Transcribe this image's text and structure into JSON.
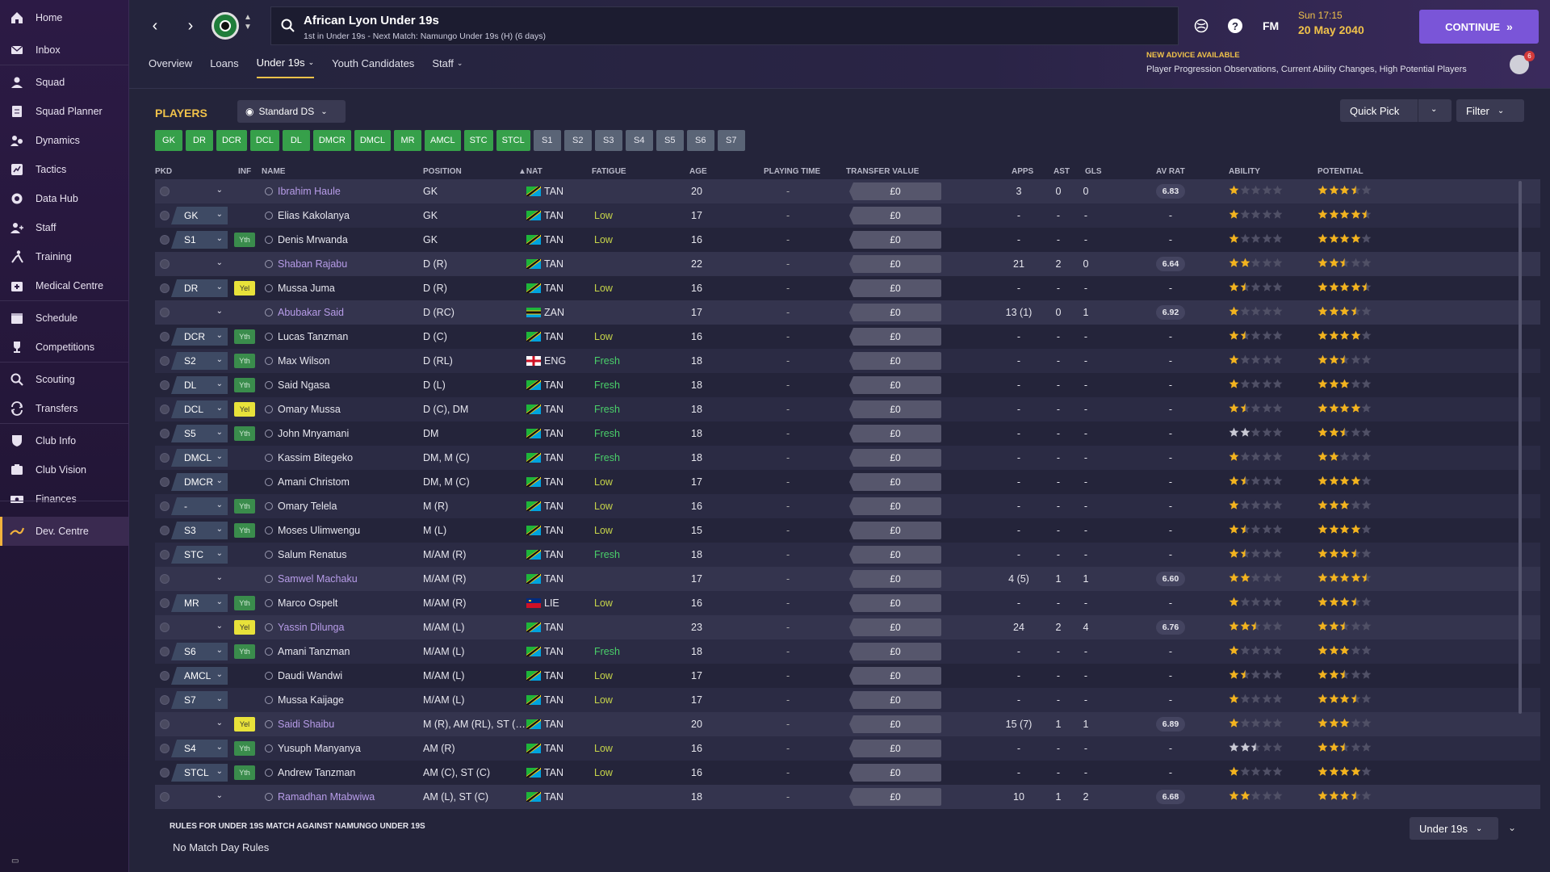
{
  "sidebar": {
    "items": [
      {
        "label": "Home",
        "icon": "home-icon"
      },
      {
        "label": "Inbox",
        "icon": "inbox-icon"
      },
      {
        "label": "Squad",
        "icon": "squad-icon"
      },
      {
        "label": "Squad Planner",
        "icon": "squad-planner-icon"
      },
      {
        "label": "Dynamics",
        "icon": "dynamics-icon"
      },
      {
        "label": "Tactics",
        "icon": "tactics-icon"
      },
      {
        "label": "Data Hub",
        "icon": "data-hub-icon"
      },
      {
        "label": "Staff",
        "icon": "staff-icon"
      },
      {
        "label": "Training",
        "icon": "training-icon"
      },
      {
        "label": "Medical Centre",
        "icon": "medical-icon"
      },
      {
        "label": "Schedule",
        "icon": "schedule-icon"
      },
      {
        "label": "Competitions",
        "icon": "trophy-icon"
      },
      {
        "label": "Scouting",
        "icon": "scouting-icon"
      },
      {
        "label": "Transfers",
        "icon": "transfers-icon"
      },
      {
        "label": "Club Info",
        "icon": "club-info-icon"
      },
      {
        "label": "Club Vision",
        "icon": "club-vision-icon"
      },
      {
        "label": "Finances",
        "icon": "finances-icon"
      },
      {
        "label": "Dev. Centre",
        "icon": "dev-centre-icon"
      }
    ]
  },
  "header": {
    "title": "African Lyon Under 19s",
    "subtitle": "1st in Under 19s - Next Match: Namungo Under 19s (H) (6 days)",
    "fm_label": "FM",
    "time": "Sun 17:15",
    "date": "20 May 2040",
    "continue_label": "CONTINUE",
    "tabs": [
      "Overview",
      "Loans",
      "Under 19s",
      "Youth Candidates",
      "Staff"
    ],
    "advice_title": "NEW ADVICE AVAILABLE",
    "advice_text": "Player Progression Observations, Current Ability Changes, High Potential Players",
    "advice_count": "6"
  },
  "toolbar": {
    "players_label": "PLAYERS",
    "view_label": "Standard DS",
    "quick_pick_label": "Quick Pick",
    "filter_label": "Filter"
  },
  "position_buttons": {
    "green": [
      "GK",
      "DR",
      "DCR",
      "DCL",
      "DL",
      "DMCR",
      "DMCL",
      "MR",
      "AMCL",
      "STC",
      "STCL"
    ],
    "grey": [
      "S1",
      "S2",
      "S3",
      "S4",
      "S5",
      "S6",
      "S7"
    ]
  },
  "columns": {
    "pkd": "PKD",
    "inf": "INF",
    "name": "NAME",
    "position": "POSITION",
    "nat": "NAT",
    "fatigue": "FATIGUE",
    "age": "AGE",
    "playing_time": "PLAYING TIME",
    "transfer_value": "TRANSFER VALUE",
    "apps": "APPS",
    "ast": "AST",
    "gls": "GLS",
    "av_rat": "AV RAT",
    "ability": "ABILITY",
    "potential": "POTENTIAL"
  },
  "players": [
    {
      "pkd": "",
      "inf": "",
      "name": "Ibrahim Haule",
      "link": true,
      "position": "GK",
      "nat": "TAN",
      "fatigue": "",
      "age": "20",
      "pt": "-",
      "tv": "£0",
      "apps": "3",
      "ast": "0",
      "gls": "0",
      "avrat": "6.83",
      "ability": 1,
      "potential": 3.5,
      "shade": true
    },
    {
      "pkd": "GK",
      "inf": "",
      "name": "Elias Kakolanya",
      "link": false,
      "position": "GK",
      "nat": "TAN",
      "fatigue": "Low",
      "age": "17",
      "pt": "-",
      "tv": "£0",
      "apps": "-",
      "ast": "-",
      "gls": "-",
      "avrat": "-",
      "ability": 1,
      "potential": 4.5,
      "shade": false
    },
    {
      "pkd": "S1",
      "inf": "Yth",
      "name": "Denis Mrwanda",
      "link": false,
      "position": "GK",
      "nat": "TAN",
      "fatigue": "Low",
      "age": "16",
      "pt": "-",
      "tv": "£0",
      "apps": "-",
      "ast": "-",
      "gls": "-",
      "avrat": "-",
      "ability": 1,
      "potential": 4,
      "shade": false
    },
    {
      "pkd": "",
      "inf": "",
      "name": "Shaban Rajabu",
      "link": true,
      "position": "D (R)",
      "nat": "TAN",
      "fatigue": "",
      "age": "22",
      "pt": "-",
      "tv": "£0",
      "apps": "21",
      "ast": "2",
      "gls": "0",
      "avrat": "6.64",
      "ability": 2,
      "potential": 2.5,
      "shade": true
    },
    {
      "pkd": "DR",
      "inf": "Yel",
      "name": "Mussa Juma",
      "link": false,
      "position": "D (R)",
      "nat": "TAN",
      "fatigue": "Low",
      "age": "16",
      "pt": "-",
      "tv": "£0",
      "apps": "-",
      "ast": "-",
      "gls": "-",
      "avrat": "-",
      "ability": 1.5,
      "potential": 4.5,
      "shade": false
    },
    {
      "pkd": "",
      "inf": "",
      "name": "Abubakar Said",
      "link": true,
      "position": "D (RC)",
      "nat": "ZAN",
      "fatigue": "",
      "age": "17",
      "pt": "-",
      "tv": "£0",
      "apps": "13 (1)",
      "ast": "0",
      "gls": "1",
      "avrat": "6.92",
      "ability": 1,
      "potential": 3.5,
      "shade": true
    },
    {
      "pkd": "DCR",
      "inf": "Yth",
      "name": "Lucas Tanzman",
      "link": false,
      "position": "D (C)",
      "nat": "TAN",
      "fatigue": "Low",
      "age": "16",
      "pt": "-",
      "tv": "£0",
      "apps": "-",
      "ast": "-",
      "gls": "-",
      "avrat": "-",
      "ability": 1.5,
      "potential": 4,
      "shade": false
    },
    {
      "pkd": "S2",
      "inf": "Yth",
      "name": "Max Wilson",
      "link": false,
      "position": "D (RL)",
      "nat": "ENG",
      "fatigue": "Fresh",
      "age": "18",
      "pt": "-",
      "tv": "£0",
      "apps": "-",
      "ast": "-",
      "gls": "-",
      "avrat": "-",
      "ability": 1,
      "potential": 2.5,
      "shade": false
    },
    {
      "pkd": "DL",
      "inf": "Yth",
      "name": "Said Ngasa",
      "link": false,
      "position": "D (L)",
      "nat": "TAN",
      "fatigue": "Fresh",
      "age": "18",
      "pt": "-",
      "tv": "£0",
      "apps": "-",
      "ast": "-",
      "gls": "-",
      "avrat": "-",
      "ability": 1,
      "potential": 3,
      "shade": false
    },
    {
      "pkd": "DCL",
      "inf": "Yel",
      "name": "Omary Mussa",
      "link": false,
      "position": "D (C), DM",
      "nat": "TAN",
      "fatigue": "Fresh",
      "age": "18",
      "pt": "-",
      "tv": "£0",
      "apps": "-",
      "ast": "-",
      "gls": "-",
      "avrat": "-",
      "ability": 1.5,
      "potential": 4,
      "shade": false
    },
    {
      "pkd": "S5",
      "inf": "Yth",
      "name": "John Mnyamani",
      "link": false,
      "position": "DM",
      "nat": "TAN",
      "fatigue": "Fresh",
      "age": "18",
      "pt": "-",
      "tv": "£0",
      "apps": "-",
      "ast": "-",
      "gls": "-",
      "avrat": "-",
      "ability": 2,
      "potential": 2.5,
      "shade": false,
      "greyAbility": true
    },
    {
      "pkd": "DMCL",
      "inf": "",
      "name": "Kassim Bitegeko",
      "link": false,
      "position": "DM, M (C)",
      "nat": "TAN",
      "fatigue": "Fresh",
      "age": "18",
      "pt": "-",
      "tv": "£0",
      "apps": "-",
      "ast": "-",
      "gls": "-",
      "avrat": "-",
      "ability": 1,
      "potential": 2,
      "shade": false
    },
    {
      "pkd": "DMCR",
      "inf": "",
      "name": "Amani Christom",
      "link": false,
      "position": "DM, M (C)",
      "nat": "TAN",
      "fatigue": "Low",
      "age": "17",
      "pt": "-",
      "tv": "£0",
      "apps": "-",
      "ast": "-",
      "gls": "-",
      "avrat": "-",
      "ability": 1.5,
      "potential": 4,
      "shade": false
    },
    {
      "pkd": "-",
      "inf": "Yth",
      "name": "Omary Telela",
      "link": false,
      "position": "M (R)",
      "nat": "TAN",
      "fatigue": "Low",
      "age": "16",
      "pt": "-",
      "tv": "£0",
      "apps": "-",
      "ast": "-",
      "gls": "-",
      "avrat": "-",
      "ability": 1,
      "potential": 3,
      "shade": false
    },
    {
      "pkd": "S3",
      "inf": "Yth",
      "name": "Moses Ulimwengu",
      "link": false,
      "position": "M (L)",
      "nat": "TAN",
      "fatigue": "Low",
      "age": "15",
      "pt": "-",
      "tv": "£0",
      "apps": "-",
      "ast": "-",
      "gls": "-",
      "avrat": "-",
      "ability": 1.5,
      "potential": 4,
      "shade": false
    },
    {
      "pkd": "STC",
      "inf": "",
      "name": "Salum Renatus",
      "link": false,
      "position": "M/AM (R)",
      "nat": "TAN",
      "fatigue": "Fresh",
      "age": "18",
      "pt": "-",
      "tv": "£0",
      "apps": "-",
      "ast": "-",
      "gls": "-",
      "avrat": "-",
      "ability": 1.5,
      "potential": 3.5,
      "shade": false
    },
    {
      "pkd": "",
      "inf": "",
      "name": "Samwel Machaku",
      "link": true,
      "position": "M/AM (R)",
      "nat": "TAN",
      "fatigue": "",
      "age": "17",
      "pt": "-",
      "tv": "£0",
      "apps": "4 (5)",
      "ast": "1",
      "gls": "1",
      "avrat": "6.60",
      "ability": 2,
      "potential": 4.5,
      "shade": true
    },
    {
      "pkd": "MR",
      "inf": "Yth",
      "name": "Marco Ospelt",
      "link": false,
      "position": "M/AM (R)",
      "nat": "LIE",
      "fatigue": "Low",
      "age": "16",
      "pt": "-",
      "tv": "£0",
      "apps": "-",
      "ast": "-",
      "gls": "-",
      "avrat": "-",
      "ability": 1,
      "potential": 3.5,
      "shade": false
    },
    {
      "pkd": "",
      "inf": "Yel",
      "name": "Yassin Dilunga",
      "link": true,
      "position": "M/AM (L)",
      "nat": "TAN",
      "fatigue": "",
      "age": "23",
      "pt": "-",
      "tv": "£0",
      "apps": "24",
      "ast": "2",
      "gls": "4",
      "avrat": "6.76",
      "ability": 2.5,
      "potential": 2.5,
      "shade": true
    },
    {
      "pkd": "S6",
      "inf": "Yth",
      "name": "Amani Tanzman",
      "link": false,
      "position": "M/AM (L)",
      "nat": "TAN",
      "fatigue": "Fresh",
      "age": "18",
      "pt": "-",
      "tv": "£0",
      "apps": "-",
      "ast": "-",
      "gls": "-",
      "avrat": "-",
      "ability": 1,
      "potential": 3,
      "shade": false
    },
    {
      "pkd": "AMCL",
      "inf": "",
      "name": "Daudi Wandwi",
      "link": false,
      "position": "M/AM (L)",
      "nat": "TAN",
      "fatigue": "Low",
      "age": "17",
      "pt": "-",
      "tv": "£0",
      "apps": "-",
      "ast": "-",
      "gls": "-",
      "avrat": "-",
      "ability": 1.5,
      "potential": 2.5,
      "shade": false
    },
    {
      "pkd": "S7",
      "inf": "",
      "name": "Mussa Kaijage",
      "link": false,
      "position": "M/AM (L)",
      "nat": "TAN",
      "fatigue": "Low",
      "age": "17",
      "pt": "-",
      "tv": "£0",
      "apps": "-",
      "ast": "-",
      "gls": "-",
      "avrat": "-",
      "ability": 1,
      "potential": 3.5,
      "shade": false
    },
    {
      "pkd": "",
      "inf": "Yel",
      "name": "Saidi Shaibu",
      "link": true,
      "position": "M (R), AM (RL), ST (…",
      "nat": "TAN",
      "fatigue": "",
      "age": "20",
      "pt": "-",
      "tv": "£0",
      "apps": "15 (7)",
      "ast": "1",
      "gls": "1",
      "avrat": "6.89",
      "ability": 1,
      "potential": 3,
      "shade": true
    },
    {
      "pkd": "S4",
      "inf": "Yth",
      "name": "Yusuph Manyanya",
      "link": false,
      "position": "AM (R)",
      "nat": "TAN",
      "fatigue": "Low",
      "age": "16",
      "pt": "-",
      "tv": "£0",
      "apps": "-",
      "ast": "-",
      "gls": "-",
      "avrat": "-",
      "ability": 2.5,
      "potential": 2.5,
      "shade": false,
      "greyAbility": true
    },
    {
      "pkd": "STCL",
      "inf": "Yth",
      "name": "Andrew Tanzman",
      "link": false,
      "position": "AM (C), ST (C)",
      "nat": "TAN",
      "fatigue": "Low",
      "age": "16",
      "pt": "-",
      "tv": "£0",
      "apps": "-",
      "ast": "-",
      "gls": "-",
      "avrat": "-",
      "ability": 1,
      "potential": 4,
      "shade": false
    },
    {
      "pkd": "",
      "inf": "",
      "name": "Ramadhan Mtabwiwa",
      "link": true,
      "position": "AM (L), ST (C)",
      "nat": "TAN",
      "fatigue": "",
      "age": "18",
      "pt": "-",
      "tv": "£0",
      "apps": "10",
      "ast": "1",
      "gls": "2",
      "avrat": "6.68",
      "ability": 2,
      "potential": 3.5,
      "shade": true
    }
  ],
  "rules": {
    "title": "RULES FOR UNDER 19S MATCH AGAINST NAMUNGO UNDER 19S",
    "text": "No Match Day Rules",
    "select_label": "Under 19s"
  },
  "colors": {
    "accent": "#f0c24a",
    "continue": "#7a55d8",
    "star": "#f2b31f",
    "green_btn": "#36a04a"
  }
}
